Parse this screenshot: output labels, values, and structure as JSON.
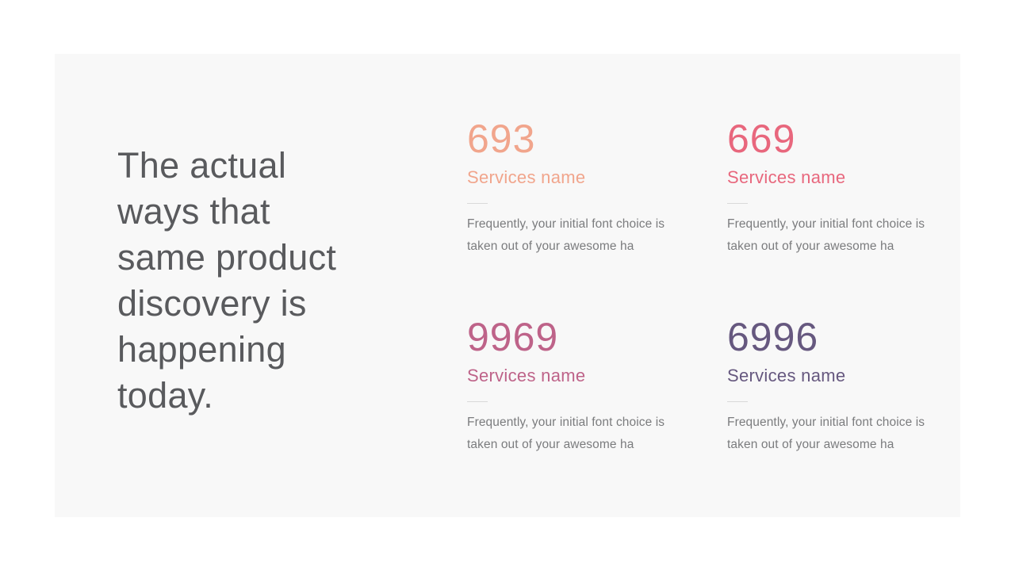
{
  "page": {
    "background_color": "#ffffff"
  },
  "panel": {
    "background_color": "#f8f8f8"
  },
  "heading": {
    "lines": [
      "The actual",
      "ways that",
      "same product",
      "discovery is",
      "happening",
      "today."
    ],
    "color": "#595a5d"
  },
  "stats": {
    "description_color": "#7b7c7e",
    "divider_color": "#d9d9d9",
    "cards": [
      {
        "value": "693",
        "label": "Services name",
        "description": "Frequently, your initial font choice is taken out of your awesome ha",
        "accent_color": "#f1a58c"
      },
      {
        "value": "669",
        "label": "Services name",
        "description": "Frequently, your initial font choice is taken out of your awesome ha",
        "accent_color": "#e8677d"
      },
      {
        "value": "9969",
        "label": "Services name",
        "description": "Frequently, your initial font choice is taken out of your awesome ha",
        "accent_color": "#be6389"
      },
      {
        "value": "6996",
        "label": "Services name",
        "description": "Frequently, your initial font choice is taken out of your awesome ha",
        "accent_color": "#66587f"
      }
    ]
  }
}
